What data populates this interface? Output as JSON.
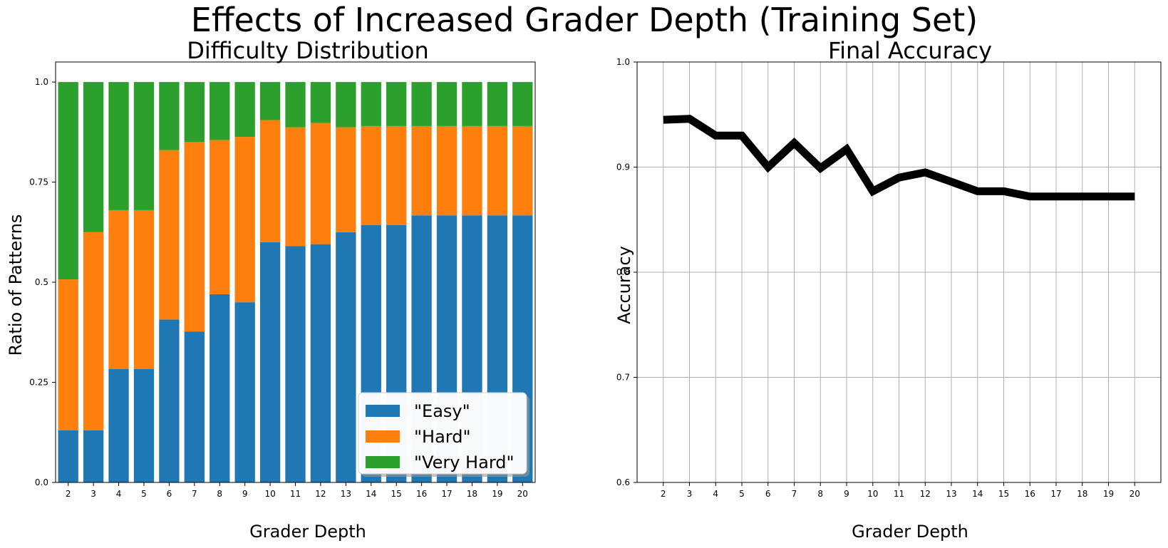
{
  "figure": {
    "suptitle": "Effects of Increased Grader Depth (Training Set)"
  },
  "chart_data": [
    {
      "type": "bar",
      "stacked": true,
      "title": "Difficulty Distribution",
      "xlabel": "Grader Depth",
      "ylabel": "Ratio of Patterns",
      "categories": [
        "2",
        "3",
        "4",
        "5",
        "6",
        "7",
        "8",
        "9",
        "10",
        "11",
        "12",
        "13",
        "14",
        "15",
        "16",
        "17",
        "18",
        "19",
        "20"
      ],
      "series": [
        {
          "name": "\"Easy\"",
          "color": "#1f77b4",
          "values": [
            0.13,
            0.13,
            0.283,
            0.283,
            0.407,
            0.377,
            0.47,
            0.45,
            0.6,
            0.59,
            0.595,
            0.625,
            0.643,
            0.643,
            0.667,
            0.667,
            0.667,
            0.667,
            0.667
          ]
        },
        {
          "name": "\"Hard\"",
          "color": "#ff7f0e",
          "values": [
            0.377,
            0.495,
            0.397,
            0.397,
            0.423,
            0.473,
            0.385,
            0.413,
            0.305,
            0.297,
            0.303,
            0.262,
            0.247,
            0.247,
            0.223,
            0.223,
            0.223,
            0.223,
            0.223
          ]
        },
        {
          "name": "\"Very Hard\"",
          "color": "#2ca02c",
          "values": [
            0.493,
            0.375,
            0.32,
            0.32,
            0.17,
            0.15,
            0.145,
            0.137,
            0.095,
            0.113,
            0.102,
            0.113,
            0.11,
            0.11,
            0.11,
            0.11,
            0.11,
            0.11,
            0.11
          ]
        }
      ],
      "ylim": [
        0,
        1.05
      ],
      "yticks": [
        0,
        0.25,
        0.5,
        0.75,
        1.0
      ],
      "ytick_labels": [
        "0.0",
        "0.25",
        "0.5",
        "0.75",
        "1.0"
      ],
      "legend": "lower right",
      "grid": false
    },
    {
      "type": "line",
      "title": "Final Accuracy",
      "xlabel": "Grader Depth",
      "ylabel": "Accuracy",
      "x": [
        2,
        3,
        4,
        5,
        6,
        7,
        8,
        9,
        10,
        11,
        12,
        13,
        14,
        15,
        16,
        17,
        18,
        19,
        20
      ],
      "series": [
        {
          "color": "#000000",
          "values": [
            0.945,
            0.946,
            0.93,
            0.93,
            0.9,
            0.923,
            0.899,
            0.917,
            0.877,
            0.89,
            0.895,
            0.886,
            0.877,
            0.877,
            0.872,
            0.872,
            0.872,
            0.872,
            0.872
          ]
        }
      ],
      "xlim": [
        1,
        21
      ],
      "ylim": [
        0.6,
        1.0
      ],
      "yticks": [
        0.6,
        0.7,
        0.8,
        0.9,
        1.0
      ],
      "ytick_labels": [
        "0.6",
        "0.7",
        "0.8",
        "0.9",
        "1.0"
      ],
      "grid": true
    }
  ]
}
